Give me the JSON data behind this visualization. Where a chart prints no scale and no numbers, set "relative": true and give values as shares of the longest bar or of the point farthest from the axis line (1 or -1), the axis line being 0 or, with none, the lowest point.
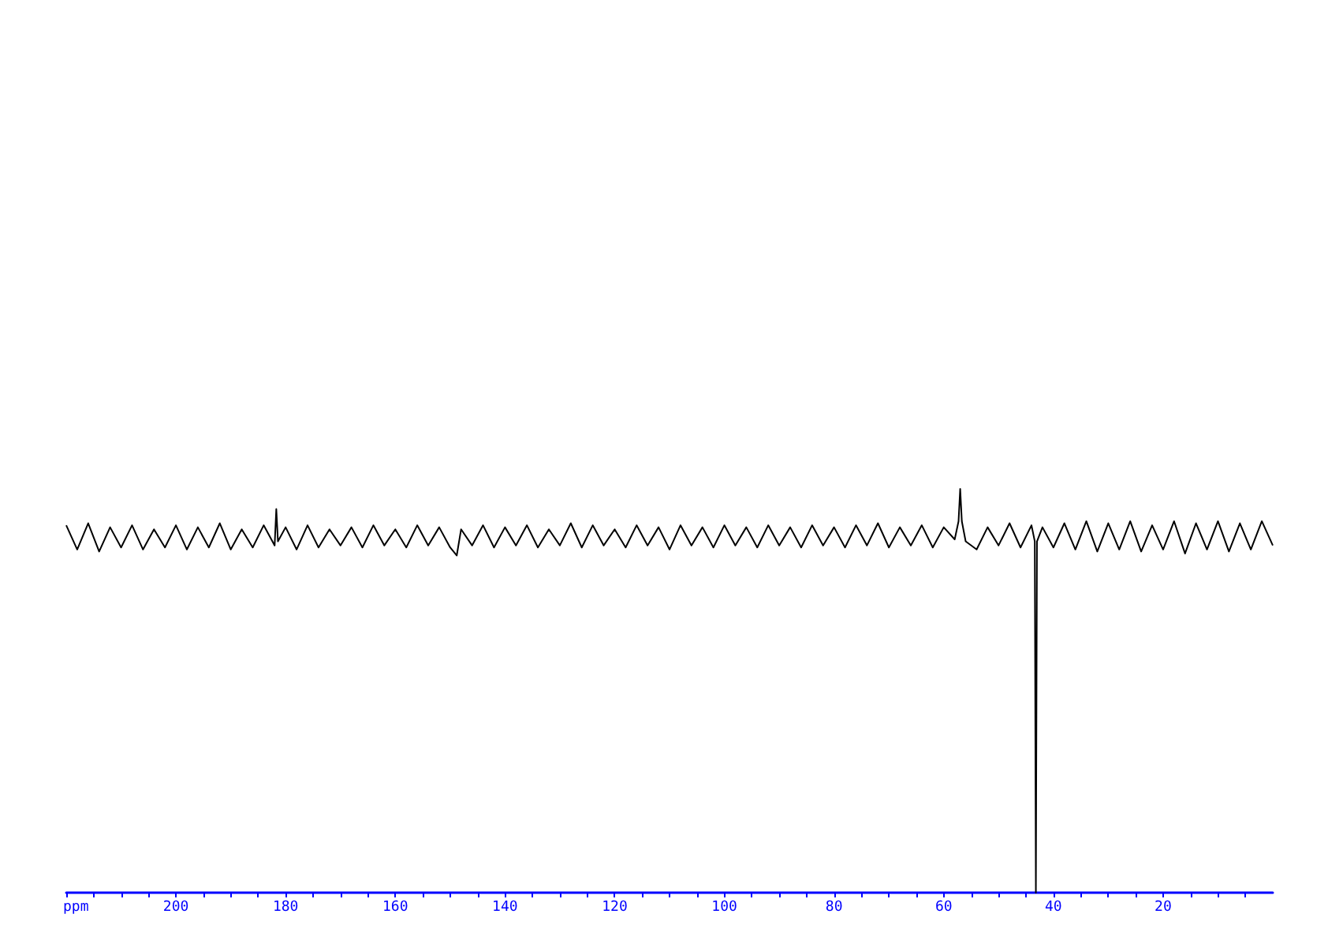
{
  "chart_data": {
    "type": "line",
    "xlabel": "ppm",
    "relative": true,
    "grid": false,
    "marker": "none",
    "xlim": [
      220,
      0
    ],
    "xticks": [
      {
        "value": 220,
        "label": null
      },
      {
        "value": 215,
        "label": null
      },
      {
        "value": 210,
        "label": null
      },
      {
        "value": 205,
        "label": null
      },
      200,
      {
        "value": 195,
        "label": null
      },
      {
        "value": 190,
        "label": null
      },
      {
        "value": 185,
        "label": null
      },
      180,
      {
        "value": 175,
        "label": null
      },
      {
        "value": 170,
        "label": null
      },
      {
        "value": 165,
        "label": null
      },
      160,
      {
        "value": 155,
        "label": null
      },
      {
        "value": 150,
        "label": null
      },
      {
        "value": 145,
        "label": null
      },
      140,
      {
        "value": 135,
        "label": null
      },
      {
        "value": 130,
        "label": null
      },
      {
        "value": 125,
        "label": null
      },
      120,
      {
        "value": 115,
        "label": null
      },
      {
        "value": 110,
        "label": null
      },
      {
        "value": 105,
        "label": null
      },
      100,
      {
        "value": 95,
        "label": null
      },
      {
        "value": 90,
        "label": null
      },
      {
        "value": 85,
        "label": null
      },
      80,
      {
        "value": 75,
        "label": null
      },
      {
        "value": 70,
        "label": null
      },
      {
        "value": 65,
        "label": null
      },
      60,
      {
        "value": 55,
        "label": null
      },
      {
        "value": 50,
        "label": null
      },
      {
        "value": 45,
        "label": null
      },
      40,
      {
        "value": 35,
        "label": null
      },
      {
        "value": 30,
        "label": null
      },
      {
        "value": 25,
        "label": null
      },
      20,
      {
        "value": 15,
        "label": null
      },
      {
        "value": 10,
        "label": null
      },
      {
        "value": 5,
        "label": null
      }
    ],
    "series": [
      {
        "color": "#000000",
        "x": [
          220,
          218,
          216,
          214,
          212,
          210,
          208,
          206,
          204,
          202,
          200,
          198,
          196,
          194,
          192,
          190,
          188,
          186,
          184,
          182,
          181.7,
          181.4,
          180,
          178,
          176,
          174,
          172,
          170,
          168,
          166,
          164,
          162,
          160,
          158,
          156,
          154,
          152,
          150,
          148.8,
          148,
          146,
          144,
          142,
          140,
          138,
          136,
          134,
          132,
          130,
          128,
          126,
          124,
          122,
          120,
          118,
          116,
          114,
          112,
          110,
          108,
          106,
          104,
          102,
          100,
          98,
          96,
          94,
          92,
          90,
          88,
          86,
          84,
          82,
          80,
          78,
          76,
          74,
          72,
          70,
          68,
          66,
          64,
          62,
          60,
          58,
          57.3,
          57,
          56.7,
          56,
          54,
          52,
          50,
          48,
          46,
          44,
          43.4,
          43.2,
          43,
          42,
          40,
          38,
          36,
          34,
          32,
          30,
          28,
          26,
          24,
          22,
          20,
          18,
          16,
          14,
          12,
          10,
          8,
          6,
          4,
          2,
          0
        ],
        "values": [
          0.91,
          0.85,
          0.915,
          0.845,
          0.905,
          0.855,
          0.91,
          0.85,
          0.9,
          0.855,
          0.91,
          0.85,
          0.905,
          0.855,
          0.915,
          0.85,
          0.9,
          0.855,
          0.91,
          0.86,
          0.95,
          0.87,
          0.905,
          0.85,
          0.91,
          0.855,
          0.9,
          0.86,
          0.905,
          0.855,
          0.91,
          0.86,
          0.9,
          0.855,
          0.91,
          0.86,
          0.905,
          0.855,
          0.835,
          0.9,
          0.86,
          0.91,
          0.855,
          0.905,
          0.86,
          0.91,
          0.855,
          0.9,
          0.86,
          0.915,
          0.855,
          0.91,
          0.86,
          0.9,
          0.855,
          0.91,
          0.86,
          0.905,
          0.85,
          0.91,
          0.86,
          0.905,
          0.855,
          0.91,
          0.86,
          0.905,
          0.855,
          0.91,
          0.86,
          0.905,
          0.855,
          0.91,
          0.86,
          0.905,
          0.855,
          0.91,
          0.86,
          0.915,
          0.855,
          0.905,
          0.86,
          0.91,
          0.855,
          0.905,
          0.875,
          0.92,
          1.0,
          0.92,
          0.87,
          0.85,
          0.905,
          0.86,
          0.915,
          0.855,
          0.91,
          0.87,
          0,
          0.87,
          0.905,
          0.855,
          0.915,
          0.85,
          0.92,
          0.845,
          0.915,
          0.85,
          0.92,
          0.845,
          0.91,
          0.85,
          0.92,
          0.84,
          0.915,
          0.85,
          0.92,
          0.845,
          0.915,
          0.85,
          0.92,
          0.86
        ]
      }
    ]
  }
}
